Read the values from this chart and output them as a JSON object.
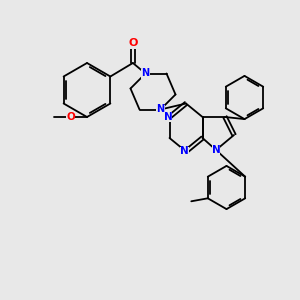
{
  "background_color": "#e8e8e8",
  "bond_color": "#000000",
  "nitrogen_color": "#0000ff",
  "oxygen_color": "#ff0000",
  "lw": 1.3,
  "figsize": [
    3.0,
    3.0
  ],
  "dpi": 100,
  "xlim": [
    0,
    10
  ],
  "ylim": [
    0,
    10
  ]
}
